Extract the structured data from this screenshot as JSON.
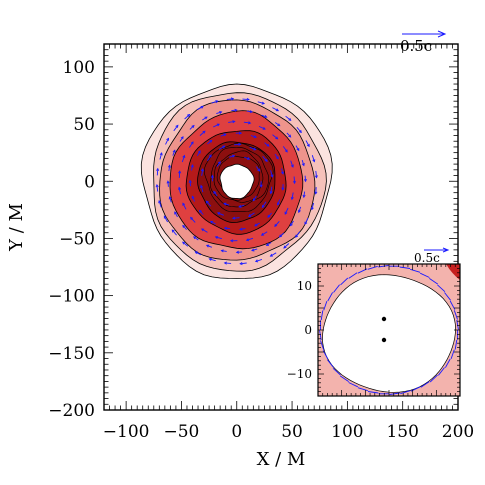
{
  "chart_data": [
    {
      "type": "contour",
      "xlabel": "X / M",
      "ylabel": "Y / M",
      "xlim": [
        -120,
        200
      ],
      "ylim": [
        -200,
        120
      ],
      "xticks": [
        -100,
        -50,
        0,
        50,
        100,
        150,
        200
      ],
      "yticks": [
        -200,
        -150,
        -100,
        -50,
        0,
        50,
        100
      ],
      "xtick_labels": [
        "−100",
        "−50",
        "0",
        "50",
        "100",
        "150",
        "200"
      ],
      "ytick_labels": [
        "−200",
        "−150",
        "−100",
        "−50",
        "0",
        "50",
        "100"
      ],
      "velocity_scale_label": "0.5c",
      "contour_levels": [
        {
          "radius": 85,
          "color": "#fbe3e0"
        },
        {
          "radius": 78,
          "color": "#f6c1ba"
        },
        {
          "radius": 70,
          "color": "#ee948c"
        },
        {
          "radius": 60,
          "color": "#df4040"
        },
        {
          "radius": 45,
          "color": "#b51a1a"
        },
        {
          "radius": 35,
          "color": "#8c0f0f"
        }
      ],
      "central_hole_radius": 15,
      "colors": {
        "contour_line": "#000000",
        "velocity_arrow": "#1a1aff",
        "scale_arrow": "#1a1aff"
      }
    },
    {
      "type": "contour-inset",
      "xlim": [
        -15,
        15
      ],
      "ylim": [
        -15,
        15
      ],
      "yticks": [
        -10,
        0,
        10
      ],
      "ytick_labels": [
        "−10",
        "0",
        "10"
      ],
      "velocity_scale_label": "0.5c",
      "black_hole_positions": [
        [
          0,
          2.5
        ],
        [
          0,
          -2.5
        ]
      ]
    }
  ]
}
